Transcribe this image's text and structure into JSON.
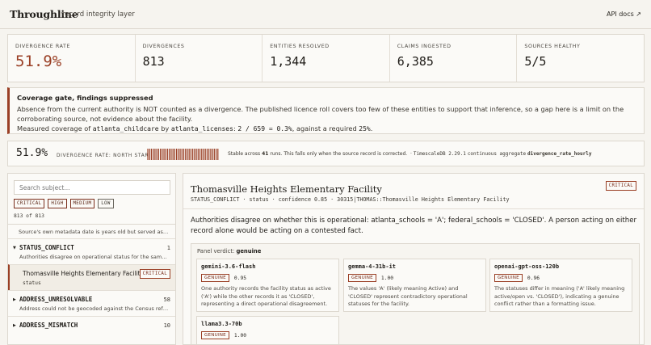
{
  "header": {
    "brand": "Throughline",
    "subtitle": "record integrity layer",
    "api_docs": "API docs ↗"
  },
  "stats": [
    {
      "label": "DIVERGENCE RATE",
      "value": "51.9%"
    },
    {
      "label": "DIVERGENCES",
      "value": "813"
    },
    {
      "label": "ENTITIES RESOLVED",
      "value": "1,344"
    },
    {
      "label": "CLAIMS INGESTED",
      "value": "6,385"
    },
    {
      "label": "SOURCES HEALTHY",
      "value": "5/5"
    }
  ],
  "gate": {
    "title": "Coverage gate, findings suppressed",
    "body": "Absence from the current authority is NOT counted as a divergence. The published licence roll covers too few of these entities to support that inference, so a gap here is a limit on the corroborating source, not evidence about the facility.",
    "measured_prefix": "Measured coverage of",
    "source_a": "atlanta_childcare",
    "by": "by",
    "source_b": "atlanta_licenses",
    "colon": ":",
    "ratio": "2 / 659 = 0.3%",
    "required_prefix": ", against a required",
    "required": "25%",
    "period": "."
  },
  "rate_strip": {
    "value": "51.9%",
    "label": "DIVERGENCE RATE: NORTH STAR",
    "note_prefix": "Stable across",
    "runs": "41",
    "note_suffix": "runs. This falls only when the source record is corrected.",
    "dot": "·",
    "db": "TimescaleDB 2.29.1",
    "agg": "continuous aggregate",
    "view": "divergence_rate_hourly",
    "spark_bars": 40
  },
  "sidebar": {
    "search_placeholder": "Search subject...",
    "filters": [
      "CRITICAL",
      "HIGH",
      "MEDIUM",
      "LOW"
    ],
    "count": "813 of 813",
    "top_desc": "Source's own metadata date is years old but served as cu...",
    "groups": [
      {
        "name": "STATUS_CONFLICT",
        "count": "1",
        "desc": "Authorities disagree on operational status for the same en..."
      },
      {
        "name": "ADDRESS_UNRESOLVABLE",
        "count": "58",
        "desc": "Address could not be geocoded against the Census refere..."
      },
      {
        "name": "ADDRESS_MISMATCH",
        "count": "10"
      }
    ],
    "selected": {
      "title": "Thomasville Heights Elementary Facility",
      "sub": "status",
      "badge": "CRITICAL"
    }
  },
  "detail": {
    "title": "Thomasville Heights Elementary Facility",
    "badge": "CRITICAL",
    "meta": "STATUS_CONFLICT · status · confidence 0.85 · 30315|THOMAS::Thomasville Heights Elementary Facility",
    "summary": "Authorities disagree on whether this is operational: atlanta_schools = 'A'; federal_schools = 'CLOSED'. A person acting on either record alone would be acting on a contested fact.",
    "panel_label": "Panel verdict:",
    "panel_verdict": "genuine",
    "cards": [
      {
        "model": "gemini-3.6-flash",
        "verdict": "GENUINE",
        "conf": "0.95",
        "text": "One authority records the facility status as active ('A') while the other records it as 'CLOSED', representing a direct operational disagreement."
      },
      {
        "model": "gemma-4-31b-it",
        "verdict": "GENUINE",
        "conf": "1.00",
        "text": "The values 'A' (likely meaning Active) and 'CLOSED' represent contradictory operational statuses for the facility."
      },
      {
        "model": "openai-gpt-oss-120b",
        "verdict": "GENUINE",
        "conf": "0.96",
        "text": "The statuses differ in meaning ('A' likely meaning active/open vs. 'CLOSED'), indicating a genuine conflict rather than a formatting issue."
      },
      {
        "model": "llama3.3-70b",
        "verdict": "GENUINE",
        "conf": "1.00",
        "text": ""
      }
    ]
  },
  "colors": {
    "accent": "#9a3f25",
    "background": "#f6f4ef",
    "panel": "#fbfaf7",
    "border": "#ddd8cf"
  }
}
